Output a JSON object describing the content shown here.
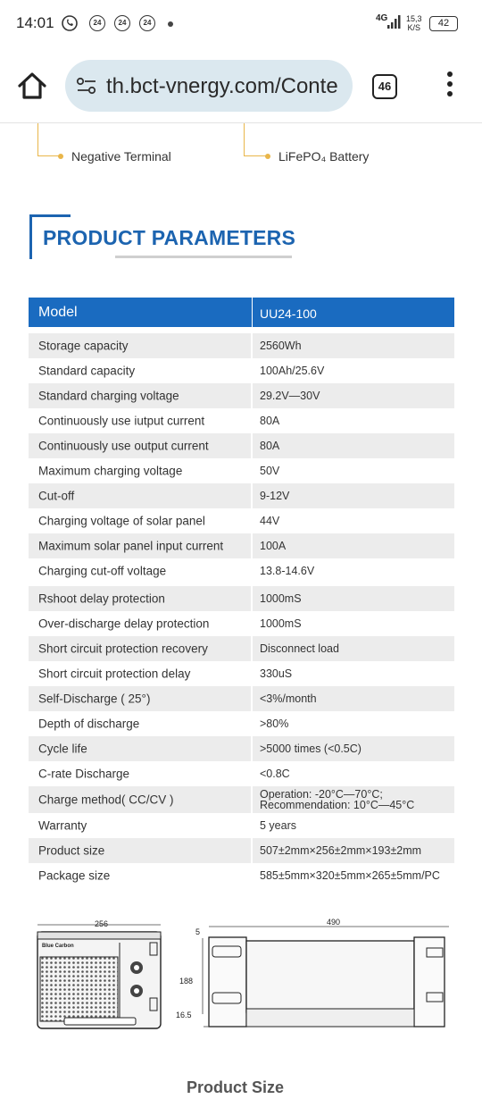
{
  "status_bar": {
    "time": "14:01",
    "notification_icons": [
      "24",
      "24",
      "24"
    ],
    "network": "4G",
    "speed_value": "15,3",
    "speed_unit": "K/S",
    "battery": "42"
  },
  "browser": {
    "url": "th.bct-vnergy.com/Conte",
    "tab_count": "46"
  },
  "battery_labels": {
    "negative_terminal": "Negative Terminal",
    "lifepo4_battery": "LiFePO₄ Battery"
  },
  "section": {
    "title": "PRODUCT PARAMETERS"
  },
  "table": {
    "header": {
      "name": "Model",
      "value": "UU24-100"
    },
    "rows": [
      {
        "name": "Storage capacity",
        "value": "2560Wh"
      },
      {
        "name": "Standard capacity",
        "value": "100Ah/25.6V"
      },
      {
        "name": "Standard charging voltage",
        "value": "29.2V—30V"
      },
      {
        "name": "Continuously use iutput current",
        "value": "80A"
      },
      {
        "name": "Continuously use output current",
        "value": "80A"
      },
      {
        "name": "Maximum charging voltage",
        "value": "50V"
      },
      {
        "name": "Cut-off",
        "value": "9-12V"
      },
      {
        "name": "Charging voltage of solar panel",
        "value": "44V"
      },
      {
        "name": "Maximum solar panel input current",
        "value": "100A"
      },
      {
        "name": "Charging cut-off voltage",
        "value": "13.8-14.6V"
      },
      {
        "name": "Rshoot delay protection",
        "value": "1000mS"
      },
      {
        "name": "Over-discharge delay protection",
        "value": "1000mS"
      },
      {
        "name": "Short circuit protection recovery",
        "value": "Disconnect load"
      },
      {
        "name": "Short circuit protection delay",
        "value": "330uS"
      },
      {
        "name": "Self-Discharge ( 25°)",
        "value": "<3%/month"
      },
      {
        "name": "Depth of discharge",
        "value": ">80%"
      },
      {
        "name": "Cycle life",
        "value": ">5000 times (<0.5C)"
      },
      {
        "name": "C-rate Discharge",
        "value": "<0.8C"
      },
      {
        "name": "Charge method( CC/CV )",
        "value": "Operation: -20°C—70°C;",
        "value2": "Recommendation: 10°C—45°C"
      },
      {
        "name": "Warranty",
        "value": "5 years"
      },
      {
        "name": "Product size",
        "value": "507±2mm×256±2mm×193±2mm"
      },
      {
        "name": "Package size",
        "value": "585±5mm×320±5mm×265±5mm/PC"
      }
    ]
  },
  "drawing": {
    "width_front": "256",
    "length_side": "490",
    "top_gap": "5",
    "height": "188",
    "base_height": "16.5",
    "brand": "Blue Carbon"
  },
  "product_size_title": "Product Size"
}
